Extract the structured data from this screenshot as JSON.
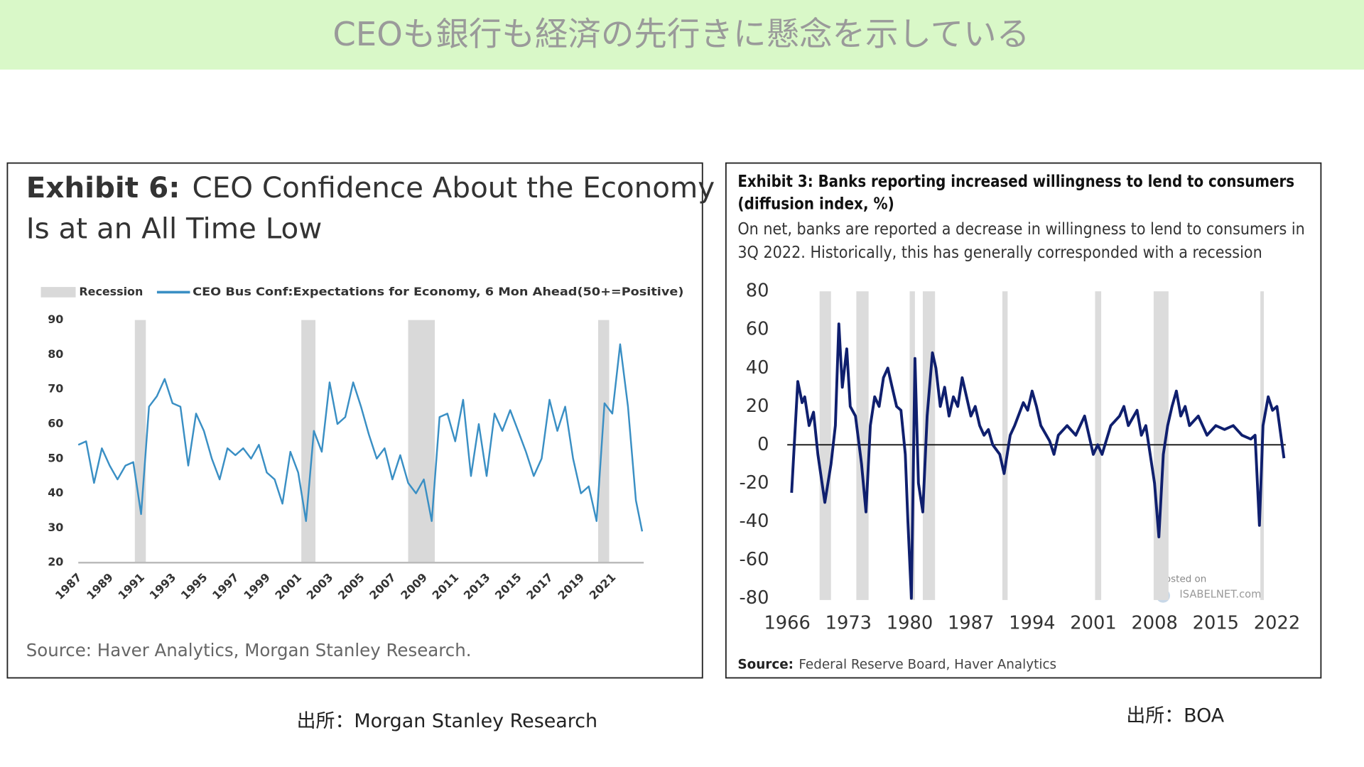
{
  "title": "CEOも銀行も経済の先行きに懸念を示している",
  "captions": [
    "出所：Morgan Stanley Research",
    "出所：BOA"
  ],
  "chart_data": [
    {
      "type": "line",
      "exhibit": "Exhibit 6:",
      "title": [
        "CEO Confidence About the Economy",
        "Is at an All Time Low"
      ],
      "source": "Source: Haver Analytics, Morgan Stanley Research.",
      "recession_label": "Recession",
      "recession_color": "#d9d9d9",
      "recessions": [
        [
          1990.6,
          1991.3
        ],
        [
          2001.2,
          2002.1
        ],
        [
          2008.0,
          2009.7
        ],
        [
          2020.1,
          2020.8
        ]
      ],
      "x": [
        1987.0,
        1987.5,
        1988.0,
        1988.5,
        1989.0,
        1989.5,
        1990.0,
        1990.5,
        1991.0,
        1991.5,
        1992.0,
        1992.5,
        1993.0,
        1993.5,
        1994.0,
        1994.5,
        1995.0,
        1995.5,
        1996.0,
        1996.5,
        1997.0,
        1997.5,
        1998.0,
        1998.5,
        1999.0,
        1999.5,
        2000.0,
        2000.5,
        2001.0,
        2001.5,
        2002.0,
        2002.5,
        2003.0,
        2003.5,
        2004.0,
        2004.5,
        2005.0,
        2005.5,
        2006.0,
        2006.5,
        2007.0,
        2007.5,
        2008.0,
        2008.5,
        2009.0,
        2009.5,
        2010.0,
        2010.5,
        2011.0,
        2011.5,
        2012.0,
        2012.5,
        2013.0,
        2013.5,
        2014.0,
        2014.5,
        2015.0,
        2015.5,
        2016.0,
        2016.5,
        2017.0,
        2017.5,
        2018.0,
        2018.5,
        2019.0,
        2019.5,
        2020.0,
        2020.5,
        2021.0,
        2021.5,
        2022.0,
        2022.5,
        2022.9
      ],
      "series": [
        {
          "name": "CEO Bus Conf:Expectations for Economy, 6 Mon Ahead(50+=Positive)",
          "color": "#3a8fc4",
          "values": [
            54,
            55,
            43,
            53,
            48,
            44,
            48,
            49,
            34,
            65,
            68,
            73,
            66,
            65,
            48,
            63,
            58,
            50,
            44,
            53,
            51,
            53,
            50,
            54,
            46,
            44,
            37,
            52,
            46,
            32,
            58,
            52,
            72,
            60,
            62,
            72,
            65,
            57,
            50,
            53,
            44,
            51,
            43,
            40,
            44,
            32,
            62,
            63,
            55,
            67,
            45,
            60,
            45,
            63,
            58,
            64,
            58,
            52,
            45,
            50,
            67,
            58,
            65,
            50,
            40,
            42,
            32,
            66,
            63,
            83,
            65,
            38,
            29
          ]
        }
      ],
      "xlim": [
        1987,
        2023
      ],
      "xticks": [
        1987,
        1989,
        1991,
        1993,
        1995,
        1997,
        1999,
        2001,
        2003,
        2005,
        2007,
        2009,
        2011,
        2013,
        2015,
        2017,
        2019,
        2021
      ],
      "ylim": [
        20,
        90
      ],
      "yticks": [
        20,
        30,
        40,
        50,
        60,
        70,
        80,
        90
      ],
      "legend": "top"
    },
    {
      "type": "line",
      "exhibit": "Exhibit 3:",
      "title": [
        "Banks reporting increased willingness to lend to consumers",
        "(diffusion index, %)"
      ],
      "subtitle": [
        "On net, banks are reported a decrease in willingness to lend to consumers in",
        "3Q 2022. Historically, this has generally corresponded with a recession"
      ],
      "source_label": "Source:",
      "source": "Federal Reserve Board, Haver Analytics",
      "annotations": [
        "Posted on",
        "ISABELNET.com"
      ],
      "recession_color": "#dcdcdc",
      "recessions": [
        [
          1969.7,
          1971.0
        ],
        [
          1973.9,
          1975.3
        ],
        [
          1980.0,
          1980.6
        ],
        [
          1981.5,
          1982.9
        ],
        [
          1990.6,
          1991.2
        ],
        [
          2001.2,
          2001.9
        ],
        [
          2007.9,
          2009.6
        ],
        [
          2020.1,
          2020.5
        ]
      ],
      "x": [
        1966.5,
        1967.2,
        1967.7,
        1968.0,
        1968.5,
        1969.0,
        1969.5,
        1970.3,
        1971.0,
        1971.5,
        1971.9,
        1972.3,
        1972.8,
        1973.2,
        1973.8,
        1974.5,
        1975.0,
        1975.5,
        1976.0,
        1976.5,
        1977.0,
        1977.5,
        1978.0,
        1978.5,
        1979.0,
        1979.5,
        1979.8,
        1980.2,
        1980.6,
        1981.0,
        1981.5,
        1982.0,
        1982.6,
        1983.0,
        1983.5,
        1984.0,
        1984.5,
        1985.0,
        1985.5,
        1986.0,
        1986.5,
        1987.0,
        1987.5,
        1988.0,
        1988.5,
        1989.0,
        1989.5,
        1990.3,
        1990.8,
        1991.5,
        1992.0,
        1993.0,
        1993.5,
        1994.0,
        1994.5,
        1995.0,
        1996.0,
        1996.5,
        1997.0,
        1998.0,
        1999.0,
        2000.0,
        2000.5,
        2001.0,
        2001.5,
        2002.0,
        2003.0,
        2004.0,
        2004.5,
        2005.0,
        2006.0,
        2006.5,
        2007.0,
        2007.5,
        2008.0,
        2008.5,
        2009.0,
        2009.5,
        2010.0,
        2010.5,
        2011.0,
        2011.5,
        2012.0,
        2013.0,
        2014.0,
        2015.0,
        2016.0,
        2017.0,
        2018.0,
        2019.0,
        2019.5,
        2020.0,
        2020.4,
        2021.0,
        2021.5,
        2022.0,
        2022.8
      ],
      "series": [
        {
          "name": "Banks reporting increased willingness to lend to consumers",
          "color": "#0f1f6e",
          "values": [
            -25,
            33,
            22,
            25,
            10,
            17,
            -5,
            -30,
            -10,
            10,
            63,
            30,
            50,
            20,
            15,
            -10,
            -35,
            10,
            25,
            20,
            35,
            40,
            30,
            20,
            18,
            -5,
            -40,
            -80,
            45,
            -20,
            -35,
            15,
            48,
            40,
            20,
            30,
            15,
            25,
            20,
            35,
            25,
            15,
            20,
            10,
            5,
            8,
            0,
            -5,
            -15,
            5,
            10,
            22,
            18,
            28,
            20,
            10,
            2,
            -5,
            5,
            10,
            5,
            15,
            5,
            -5,
            0,
            -5,
            10,
            15,
            20,
            10,
            18,
            5,
            10,
            -5,
            -20,
            -48,
            -5,
            10,
            20,
            28,
            15,
            20,
            10,
            15,
            5,
            10,
            8,
            10,
            5,
            3,
            5,
            -42,
            10,
            25,
            18,
            20,
            -7
          ]
        }
      ],
      "xlim": [
        1966,
        2023
      ],
      "xticks": [
        1966,
        1973,
        1980,
        1987,
        1994,
        2001,
        2008,
        2015,
        2022
      ],
      "ylim": [
        -80,
        80
      ],
      "yticks": [
        80,
        60,
        40,
        20,
        0,
        -20,
        -40,
        -60,
        -80
      ]
    }
  ]
}
